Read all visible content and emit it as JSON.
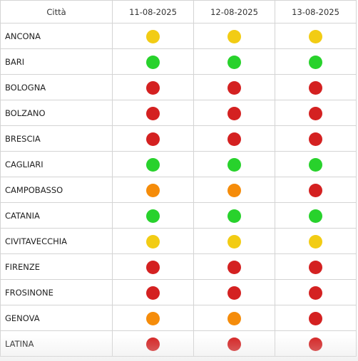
{
  "table": {
    "headers": [
      "Città",
      "11-08-2025",
      "12-08-2025",
      "13-08-2025"
    ],
    "rows": [
      {
        "city": "ANCONA",
        "levels": [
          "yellow",
          "yellow",
          "yellow"
        ]
      },
      {
        "city": "BARI",
        "levels": [
          "green",
          "green",
          "green"
        ]
      },
      {
        "city": "BOLOGNA",
        "levels": [
          "red",
          "red",
          "red"
        ]
      },
      {
        "city": "BOLZANO",
        "levels": [
          "red",
          "red",
          "red"
        ]
      },
      {
        "city": "BRESCIA",
        "levels": [
          "red",
          "red",
          "red"
        ]
      },
      {
        "city": "CAGLIARI",
        "levels": [
          "green",
          "green",
          "green"
        ]
      },
      {
        "city": "CAMPOBASSO",
        "levels": [
          "orange",
          "orange",
          "red"
        ]
      },
      {
        "city": "CATANIA",
        "levels": [
          "green",
          "green",
          "green"
        ]
      },
      {
        "city": "CIVITAVECCHIA",
        "levels": [
          "yellow",
          "yellow",
          "yellow"
        ]
      },
      {
        "city": "FIRENZE",
        "levels": [
          "red",
          "red",
          "red"
        ]
      },
      {
        "city": "FROSINONE",
        "levels": [
          "red",
          "red",
          "red"
        ]
      },
      {
        "city": "GENOVA",
        "levels": [
          "orange",
          "orange",
          "red"
        ]
      },
      {
        "city": "LATINA",
        "levels": [
          "red",
          "red",
          "red"
        ]
      }
    ]
  },
  "colors": {
    "yellow": "#f2cc14",
    "green": "#28d22c",
    "red": "#d42121",
    "orange": "#f58c0a",
    "grid": "#d4d4d4"
  }
}
